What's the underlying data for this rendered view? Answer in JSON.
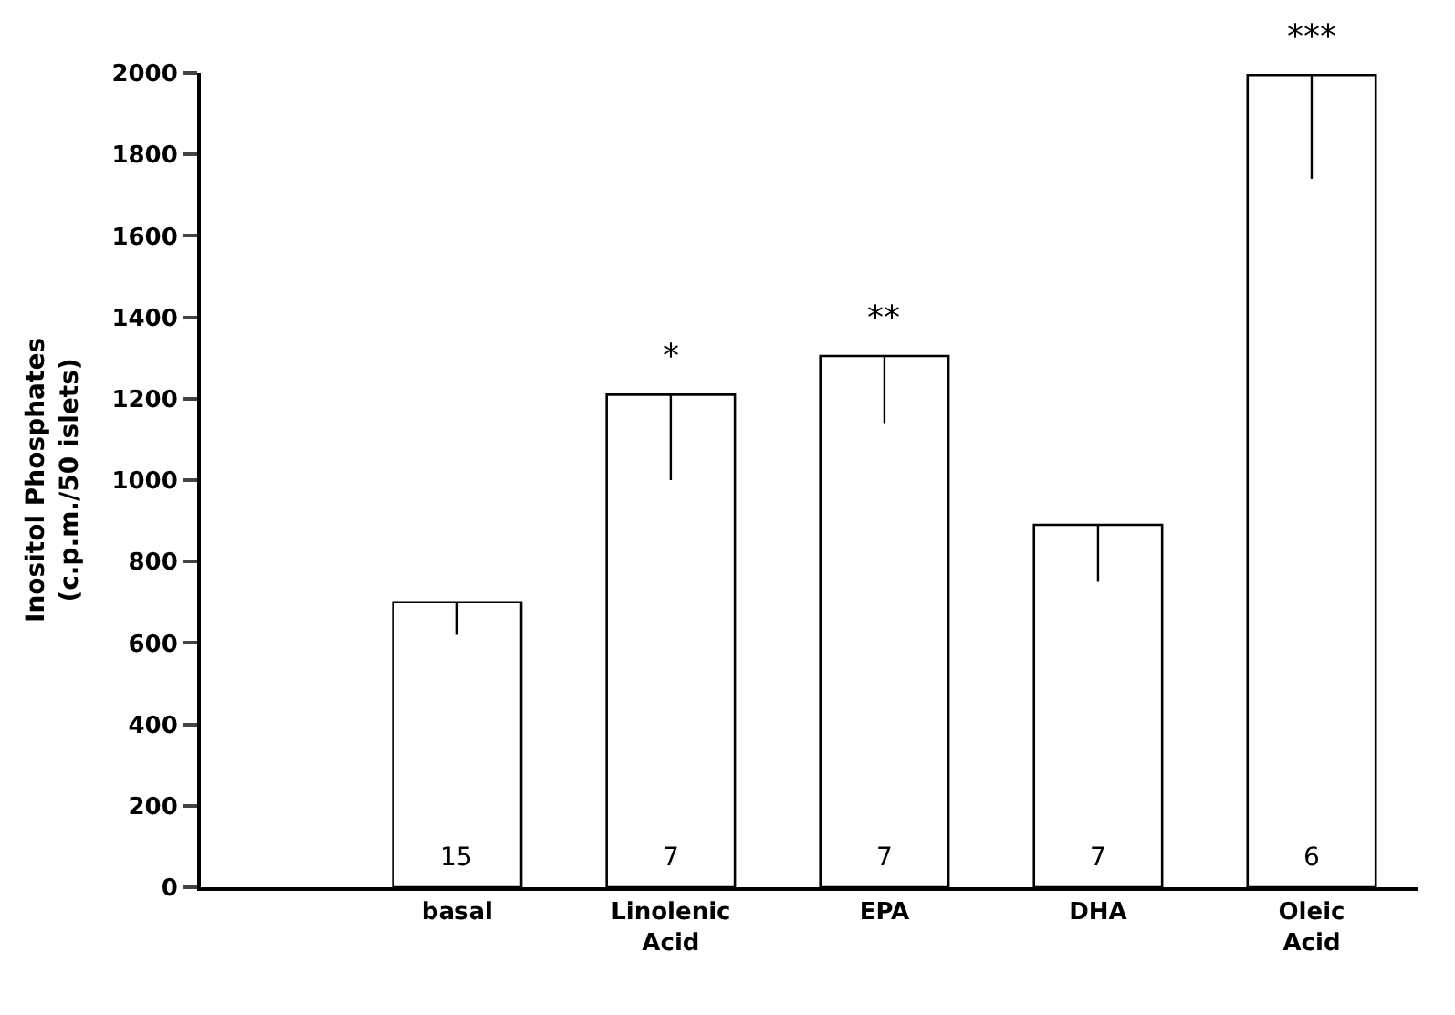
{
  "chart_data": {
    "type": "bar",
    "ylabel": "Inositol Phosphates\n(c.p.m./50 islets)",
    "categories": [
      "basal",
      "Linolenic\nAcid",
      "EPA",
      "DHA",
      "Oleic\nAcid"
    ],
    "values": [
      700,
      1210,
      1305,
      890,
      1995
    ],
    "errors": [
      [
        620,
        700
      ],
      [
        1000,
        1210
      ],
      [
        1140,
        1305
      ],
      [
        750,
        890
      ],
      [
        1740,
        1995
      ]
    ],
    "color": "#ffffff",
    "ylim": [
      0,
      2000
    ],
    "yticks": [
      0,
      200,
      400,
      600,
      800,
      1000,
      1200,
      1400,
      1600,
      1800,
      2000
    ],
    "legend": false,
    "annotations": [
      {
        "text": "15",
        "x": "basal",
        "y": 0
      },
      {
        "text": "7",
        "x": "Linolenic\nAcid",
        "y": 0
      },
      {
        "text": "7",
        "x": "EPA",
        "y": 0
      },
      {
        "text": "7",
        "x": "DHA",
        "y": 0
      },
      {
        "text": "6",
        "x": "Oleic\nAcid",
        "y": 0
      },
      {
        "text": "*",
        "x": "Linolenic\nAcid",
        "y": 1210
      },
      {
        "text": "**",
        "x": "EPA",
        "y": 1305
      },
      {
        "text": "***",
        "x": "Oleic\nAcid",
        "y": 1995
      }
    ]
  }
}
